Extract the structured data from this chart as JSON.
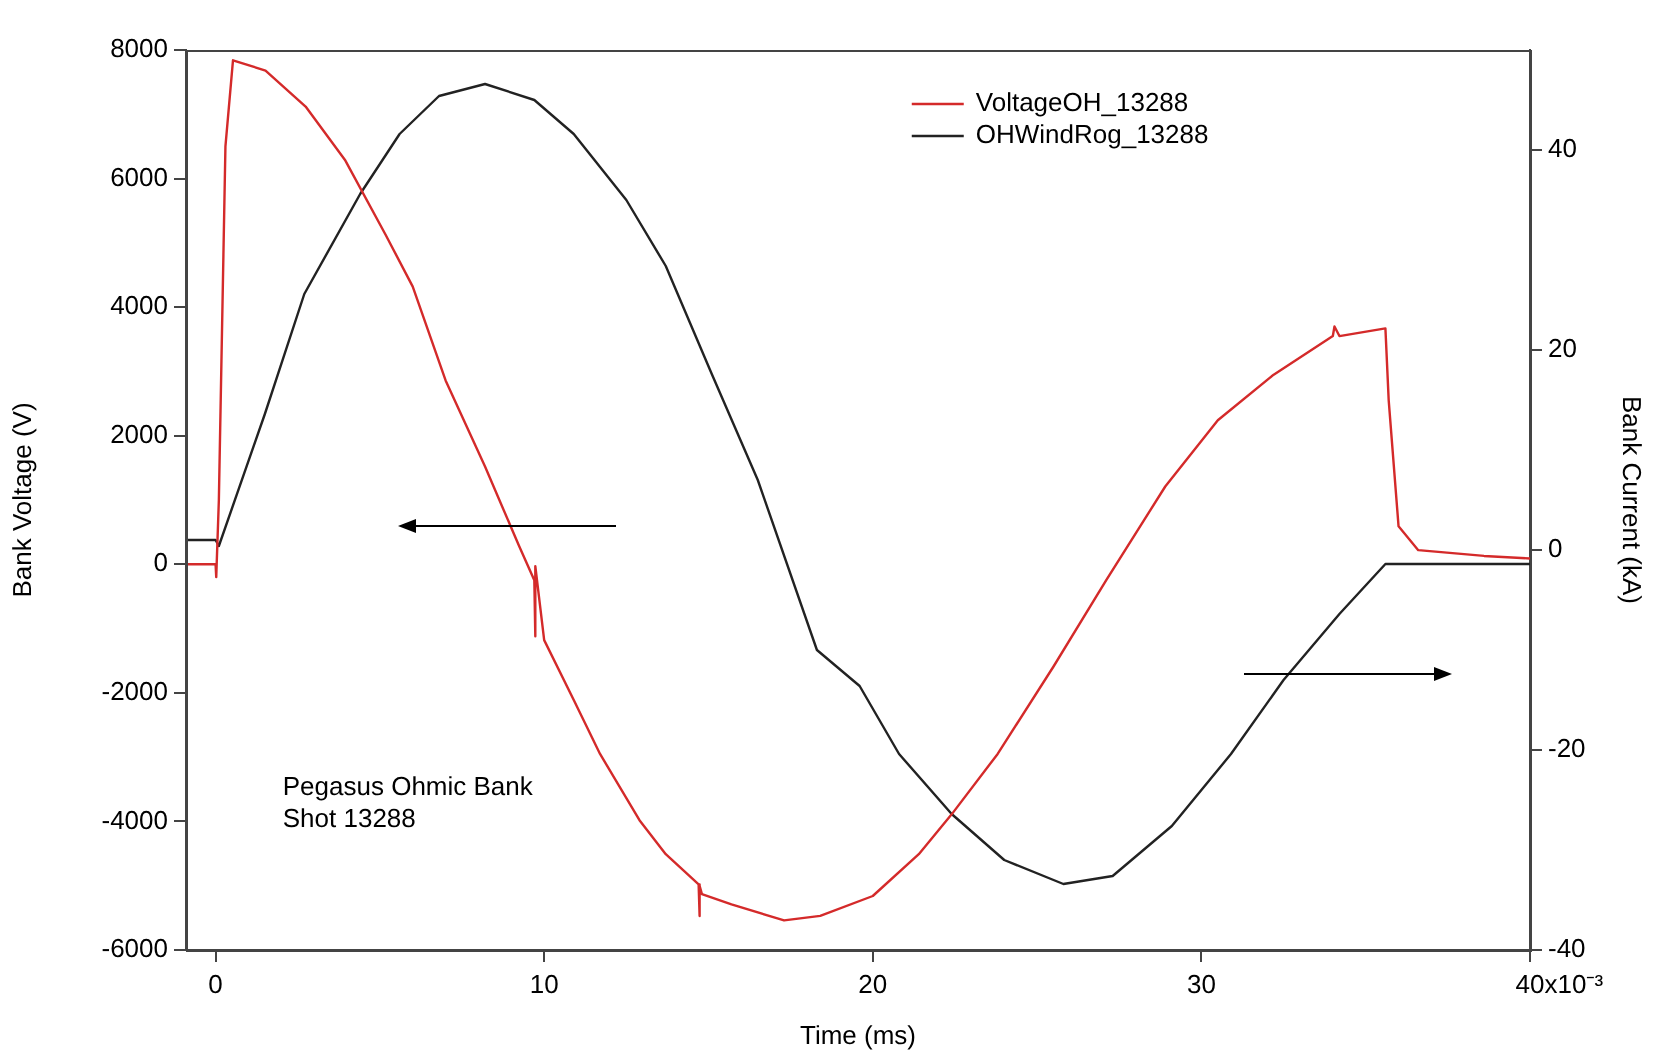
{
  "chart_data": {
    "type": "line",
    "xlabel": "Time (ms)",
    "ylabel": "Bank Voltage (V)",
    "y2label": "Bank Current (kA)",
    "xlim": [
      -0.9,
      40
    ],
    "xticks": [
      0,
      10,
      20,
      30,
      40
    ],
    "ylim": [
      -6000,
      8000
    ],
    "yticks": [
      -6000,
      -4000,
      -2000,
      0,
      2000,
      4000,
      6000,
      8000
    ],
    "y2lim": [
      -40,
      50
    ],
    "y2ticks": [
      -40,
      -20,
      0,
      20,
      40
    ],
    "legend": "top right",
    "marker": "none",
    "line_style": "solid",
    "annotations": [
      "Pegasus Ohmic Bank\nShot 13288",
      "x10⁻³"
    ],
    "series": [
      {
        "name": "VoltageOH_13288",
        "color": "#d42a2a",
        "x": [
          -0.9,
          0,
          0.02,
          0.1,
          0.3,
          0.53,
          1.52,
          2.74,
          3.95,
          5.17,
          6.0,
          7.0,
          8.2,
          9.24,
          9.7,
          9.72,
          9.74,
          10.0,
          10.9,
          11.7,
          12.9,
          13.7,
          14.7,
          14.72,
          14.74,
          14.8,
          15.7,
          17.3,
          18.4,
          20.0,
          21.4,
          22.4,
          23.8,
          25.5,
          27.1,
          28.9,
          30.5,
          32.2,
          34.0,
          34.05,
          34.2,
          35.6,
          35.7,
          36.0,
          36.6,
          38.6,
          40
        ],
        "values": [
          0,
          0,
          -200,
          1000,
          6500,
          7840,
          7680,
          7120,
          6280,
          5130,
          4320,
          2860,
          1520,
          280,
          -250,
          -1120,
          -30,
          -1180,
          -2110,
          -2950,
          -3980,
          -4510,
          -4980,
          -5470,
          -5000,
          -5130,
          -5290,
          -5540,
          -5470,
          -5160,
          -4510,
          -3890,
          -2950,
          -1590,
          -250,
          1210,
          2240,
          2950,
          3550,
          3700,
          3550,
          3670,
          2550,
          590,
          220,
          130,
          90
        ]
      },
      {
        "name": "OHWindRog_13288",
        "color": "#222222",
        "axis": "y2",
        "x": [
          -0.9,
          0,
          0.1,
          1.5,
          2.7,
          4.4,
          5.6,
          6.8,
          8.2,
          9.7,
          10.9,
          12.5,
          13.7,
          15.1,
          16.5,
          18.3,
          19.6,
          20.8,
          22.4,
          24.0,
          25.8,
          27.3,
          29.1,
          30.9,
          32.5,
          34.2,
          35.6,
          40
        ],
        "values": [
          1,
          1,
          0.4,
          13.6,
          25.6,
          35.6,
          41.6,
          45.4,
          46.6,
          45,
          41.6,
          35,
          28.4,
          17.6,
          7,
          -10,
          -13.6,
          -20.4,
          -26.4,
          -31,
          -33.4,
          -32.6,
          -27.6,
          -20.4,
          -13,
          -6.4,
          -1.4,
          -1.4
        ]
      }
    ]
  }
}
